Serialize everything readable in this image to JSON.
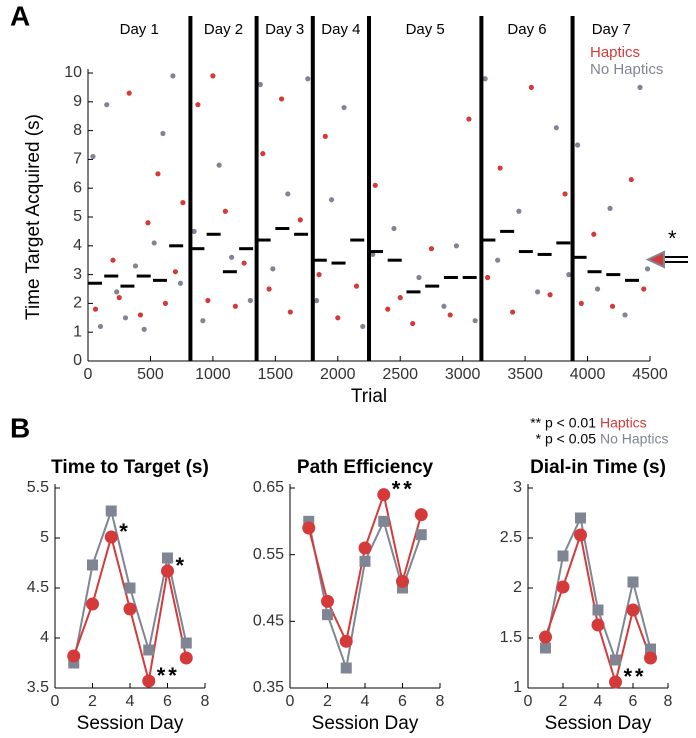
{
  "panel_a_label": "A",
  "panel_b_label": "B",
  "significance": [
    "** p < 0.01",
    "* p < 0.05"
  ],
  "chart_data": [
    {
      "type": "scatter",
      "xlabel": "Trial",
      "ylabel": "Time Target Acquired (s)",
      "xlim": [
        0,
        4500
      ],
      "ylim": [
        0,
        10
      ],
      "xticks": [
        0,
        500,
        1000,
        1500,
        2000,
        2500,
        3000,
        3500,
        4000,
        4500
      ],
      "yticks": [
        0,
        1,
        2,
        3,
        4,
        5,
        6,
        7,
        8,
        9,
        10
      ],
      "days": [
        "Day 1",
        "Day 2",
        "Day 3",
        "Day 4",
        "Day 5",
        "Day 6",
        "Day 7"
      ],
      "day_boundaries": [
        820,
        1350,
        1800,
        2250,
        3150,
        3880
      ],
      "annotation": "*",
      "series": [
        {
          "name": "Haptics",
          "color": "#d43a3a",
          "x": [
            60,
            200,
            250,
            330,
            420,
            480,
            560,
            620,
            700,
            760,
            880,
            960,
            1000,
            1100,
            1180,
            1250,
            1400,
            1450,
            1550,
            1620,
            1700,
            1850,
            1900,
            2000,
            2150,
            2300,
            2400,
            2500,
            2600,
            2750,
            2900,
            3050,
            3200,
            3300,
            3400,
            3550,
            3700,
            3820,
            3950,
            4050,
            4200,
            4350,
            4450
          ],
          "values": [
            1.8,
            3.5,
            2.2,
            9.3,
            1.6,
            4.8,
            6.5,
            2.0,
            3.1,
            5.5,
            8.9,
            2.1,
            9.9,
            5.2,
            1.9,
            3.4,
            7.2,
            2.5,
            9.1,
            1.7,
            4.9,
            3.0,
            7.8,
            1.5,
            2.6,
            6.1,
            1.8,
            2.2,
            1.3,
            3.9,
            1.6,
            8.4,
            2.9,
            6.7,
            1.7,
            9.5,
            2.3,
            5.8,
            2.0,
            4.4,
            1.9,
            6.3,
            2.5
          ]
        },
        {
          "name": "No Haptics",
          "color": "#7f8593",
          "x": [
            40,
            100,
            150,
            230,
            300,
            380,
            450,
            530,
            600,
            680,
            740,
            850,
            920,
            1050,
            1150,
            1300,
            1380,
            1480,
            1600,
            1760,
            1830,
            1950,
            2050,
            2200,
            2280,
            2450,
            2650,
            2850,
            2950,
            3100,
            3180,
            3280,
            3450,
            3600,
            3750,
            3850,
            3920,
            4080,
            4180,
            4300,
            4420,
            4480
          ],
          "values": [
            7.1,
            1.2,
            8.9,
            2.4,
            1.5,
            3.3,
            1.1,
            4.1,
            7.9,
            9.9,
            2.7,
            4.5,
            1.4,
            6.8,
            3.6,
            2.1,
            9.6,
            3.2,
            5.8,
            9.8,
            2.1,
            5.6,
            8.8,
            1.2,
            3.7,
            4.6,
            2.9,
            1.9,
            4.0,
            1.4,
            9.8,
            3.5,
            5.2,
            2.4,
            8.1,
            3.0,
            7.5,
            2.5,
            5.3,
            1.6,
            9.5,
            3.2
          ]
        }
      ],
      "means": {
        "x_start": [
          0,
          130,
          260,
          390,
          520,
          650,
          820,
          950,
          1080,
          1210,
          1350,
          1500,
          1650,
          1800,
          1950,
          2100,
          2250,
          2400,
          2550,
          2700,
          2850,
          3000,
          3150,
          3300,
          3450,
          3600,
          3750,
          3880,
          4000,
          4150,
          4300
        ],
        "x_end": [
          130,
          260,
          390,
          520,
          650,
          820,
          950,
          1080,
          1210,
          1350,
          1500,
          1650,
          1800,
          1950,
          2100,
          2250,
          2400,
          2550,
          2700,
          2850,
          3000,
          3150,
          3300,
          3450,
          3600,
          3750,
          3880,
          4000,
          4150,
          4300,
          4450
        ],
        "values": [
          2.7,
          2.95,
          2.6,
          2.95,
          2.8,
          4.0,
          3.9,
          4.4,
          3.1,
          3.9,
          4.2,
          4.6,
          4.4,
          3.5,
          3.4,
          4.2,
          3.8,
          3.5,
          2.4,
          2.6,
          2.9,
          2.9,
          4.2,
          4.5,
          3.8,
          3.7,
          4.1,
          3.6,
          3.1,
          3.0,
          2.8
        ]
      }
    },
    {
      "type": "line",
      "title": "Time to Target (s)",
      "xlabel": "Session Day",
      "x": [
        1,
        2,
        3,
        4,
        5,
        6,
        7
      ],
      "xlim": [
        0,
        8
      ],
      "xticks": [
        0,
        2,
        4,
        6,
        8
      ],
      "ylim": [
        3.5,
        5.5
      ],
      "yticks": [
        3.5,
        4,
        4.5,
        5,
        5.5
      ],
      "series": [
        {
          "name": "Haptics",
          "color": "#d43a3a",
          "marker": "circle",
          "values": [
            3.82,
            4.34,
            5.01,
            4.29,
            3.57,
            4.67,
            3.8
          ]
        },
        {
          "name": "No Haptics",
          "color": "#7f8593",
          "marker": "square",
          "values": [
            3.75,
            4.73,
            5.27,
            4.5,
            3.88,
            4.8,
            3.95
          ]
        }
      ],
      "annotations": [
        {
          "text": "*",
          "x": 3
        },
        {
          "text": "**",
          "x": 5
        },
        {
          "text": "*",
          "x": 6
        }
      ]
    },
    {
      "type": "line",
      "title": "Path Efficiency",
      "xlabel": "Session Day",
      "x": [
        1,
        2,
        3,
        4,
        5,
        6,
        7
      ],
      "xlim": [
        0,
        8
      ],
      "xticks": [
        0,
        2,
        4,
        6,
        8
      ],
      "ylim": [
        0.35,
        0.65
      ],
      "yticks": [
        0.35,
        0.45,
        0.55,
        0.65
      ],
      "series": [
        {
          "name": "Haptics",
          "color": "#d43a3a",
          "marker": "circle",
          "values": [
            0.59,
            0.48,
            0.42,
            0.56,
            0.64,
            0.51,
            0.61
          ]
        },
        {
          "name": "No Haptics",
          "color": "#7f8593",
          "marker": "square",
          "values": [
            0.6,
            0.46,
            0.38,
            0.54,
            0.6,
            0.5,
            0.58
          ]
        }
      ],
      "annotations": [
        {
          "text": "**",
          "x": 5
        }
      ]
    },
    {
      "type": "line",
      "title": "Dial-in Time (s)",
      "xlabel": "Session Day",
      "x": [
        1,
        2,
        3,
        4,
        5,
        6,
        7
      ],
      "xlim": [
        0,
        8
      ],
      "xticks": [
        0,
        2,
        4,
        6,
        8
      ],
      "ylim": [
        1,
        3
      ],
      "yticks": [
        1,
        1.5,
        2,
        2.5,
        3
      ],
      "series": [
        {
          "name": "Haptics",
          "color": "#d43a3a",
          "marker": "circle",
          "values": [
            1.51,
            2.01,
            2.53,
            1.63,
            1.06,
            1.78,
            1.3
          ]
        },
        {
          "name": "No Haptics",
          "color": "#7f8593",
          "marker": "square",
          "values": [
            1.4,
            2.32,
            2.7,
            1.78,
            1.28,
            2.06,
            1.39
          ]
        }
      ],
      "annotations": [
        {
          "text": "**",
          "x": 5
        }
      ]
    }
  ]
}
